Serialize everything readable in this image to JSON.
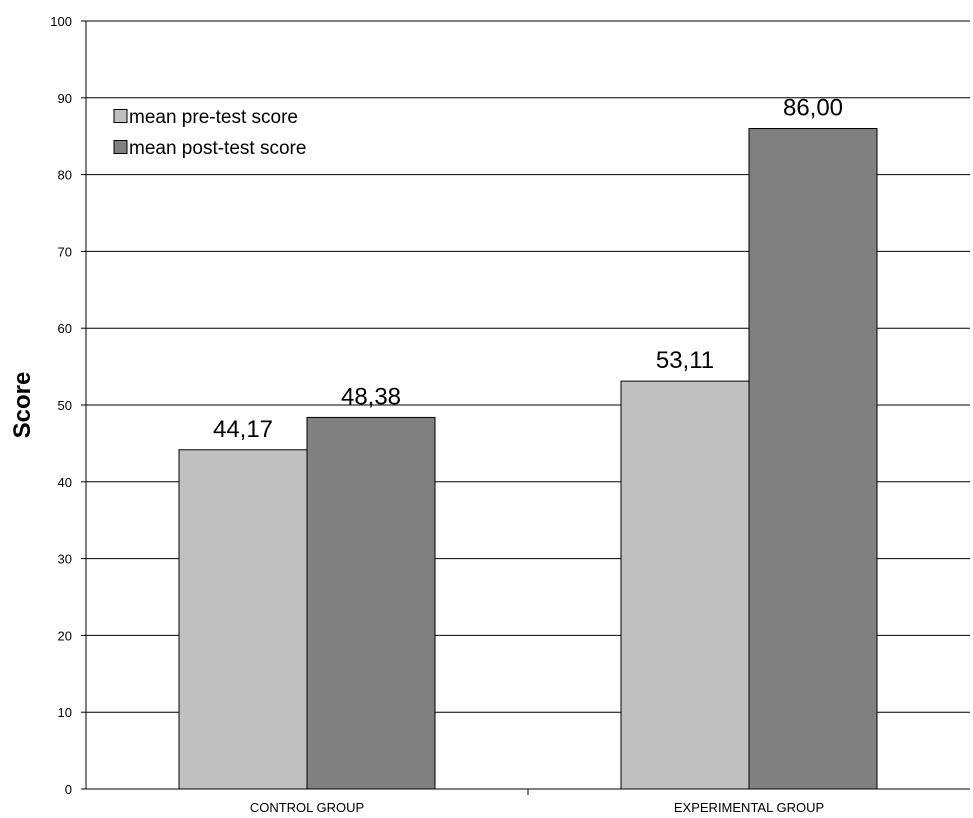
{
  "chart_data": {
    "type": "bar",
    "categories": [
      "CONTROL GROUP",
      "EXPERIMENTAL GROUP"
    ],
    "series": [
      {
        "name": "mean pre-test score",
        "values": [
          44.17,
          53.11
        ],
        "labels": [
          "44,17",
          "53,11"
        ],
        "color": "#c0c0c0"
      },
      {
        "name": "mean post-test score",
        "values": [
          48.38,
          86.0
        ],
        "labels": [
          "48,38",
          "86,00"
        ],
        "color": "#808080"
      }
    ],
    "title": "",
    "xlabel": "",
    "ylabel": "Score",
    "ylim": [
      0,
      100
    ],
    "yticks": [
      0,
      10,
      20,
      30,
      40,
      50,
      60,
      70,
      80,
      90,
      100
    ],
    "grid": true,
    "legend_position": "top-left"
  }
}
